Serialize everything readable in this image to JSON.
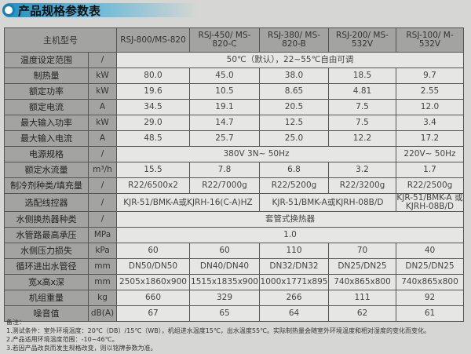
{
  "title": "产品规格参数表",
  "header": {
    "label": "主机型号",
    "models": [
      "RSJ-800/MS-820",
      "RSJ-450/ MS-820-C",
      "RSJ-380/ MS-820-B",
      "RSJ-200/ MS-532V",
      "RSJ-100/ M-532V"
    ]
  },
  "rows": [
    {
      "label": "温度设定范围",
      "unit": "/",
      "cells": [
        {
          "v": "50℃（默认），22~55℃自由可调",
          "span": 5
        }
      ]
    },
    {
      "label": "制热量",
      "unit": "kW",
      "cells": [
        {
          "v": "80.0"
        },
        {
          "v": "45.0"
        },
        {
          "v": "38.0"
        },
        {
          "v": "18.5"
        },
        {
          "v": "9.7"
        }
      ]
    },
    {
      "label": "额定功率",
      "unit": "kW",
      "cells": [
        {
          "v": "19.6"
        },
        {
          "v": "10.5"
        },
        {
          "v": "8.65"
        },
        {
          "v": "4.81"
        },
        {
          "v": "2.55"
        }
      ]
    },
    {
      "label": "额定电流",
      "unit": "A",
      "cells": [
        {
          "v": "34.5"
        },
        {
          "v": "19.1"
        },
        {
          "v": "20.5"
        },
        {
          "v": "7.5"
        },
        {
          "v": "12.0"
        }
      ]
    },
    {
      "label": "最大输入功率",
      "unit": "kW",
      "cells": [
        {
          "v": "29.0"
        },
        {
          "v": "14.7"
        },
        {
          "v": "12.5"
        },
        {
          "v": "7.5"
        },
        {
          "v": "3.4"
        }
      ]
    },
    {
      "label": "最大输入电流",
      "unit": "A",
      "cells": [
        {
          "v": "48.5"
        },
        {
          "v": "25.7"
        },
        {
          "v": "25.0"
        },
        {
          "v": "12.2"
        },
        {
          "v": "17.2"
        }
      ]
    },
    {
      "label": "电源规格",
      "unit": "/",
      "cells": [
        {
          "v": "380V  3N~ 50Hz",
          "span": 4
        },
        {
          "v": "220V~ 50Hz"
        }
      ]
    },
    {
      "label": "额定水流量",
      "unit": "m³/h",
      "cells": [
        {
          "v": "15.5"
        },
        {
          "v": "7.8"
        },
        {
          "v": "6.8"
        },
        {
          "v": "3.2"
        },
        {
          "v": "1.7"
        }
      ]
    },
    {
      "label": "制冷剂种类/填充量",
      "unit": "/",
      "cells": [
        {
          "v": "R22/6500x2"
        },
        {
          "v": "R22/7000g"
        },
        {
          "v": "R22/5200g"
        },
        {
          "v": "R22/3200g"
        },
        {
          "v": "R22/2500g"
        }
      ]
    },
    {
      "label": "选配线控器",
      "unit": "/",
      "cells": [
        {
          "v": "KJR-51/BMK-A或KJRH-16(C-A)HZ",
          "span": 2
        },
        {
          "v": "KJR-51/BMK-A或KJRH-08B/D",
          "span": 2
        },
        {
          "v": "KJR-51/BMK-A 或KJRH-08B/D"
        }
      ]
    },
    {
      "label": "水侧换热器种类",
      "unit": "/",
      "cells": [
        {
          "v": "套管式换热器",
          "span": 5
        }
      ]
    },
    {
      "label": "水管路最高承压",
      "unit": "MPa",
      "cells": [
        {
          "v": "1.0",
          "span": 5
        }
      ]
    },
    {
      "label": "水侧压力损失",
      "unit": "kPa",
      "cells": [
        {
          "v": "60"
        },
        {
          "v": "60"
        },
        {
          "v": "110"
        },
        {
          "v": "70"
        },
        {
          "v": "40"
        }
      ]
    },
    {
      "label": "循环进出水管径",
      "unit": "mm",
      "cells": [
        {
          "v": "DN50/DN50"
        },
        {
          "v": "DN40/DN40"
        },
        {
          "v": "DN32/DN32"
        },
        {
          "v": "DN25/DN25"
        },
        {
          "v": "DN25/DN25"
        }
      ]
    },
    {
      "label": "宽x高x深",
      "unit": "mm",
      "cells": [
        {
          "v": "2505x1860x900"
        },
        {
          "v": "1515x1835x900"
        },
        {
          "v": "1000x1771x895"
        },
        {
          "v": "740x865x800"
        },
        {
          "v": "740x865x800"
        }
      ]
    },
    {
      "label": "机组重量",
      "unit": "kg",
      "cells": [
        {
          "v": "660"
        },
        {
          "v": "329"
        },
        {
          "v": "266"
        },
        {
          "v": "111"
        },
        {
          "v": "92"
        }
      ]
    },
    {
      "label": "噪音值",
      "unit": "dB(A)",
      "cells": [
        {
          "v": "67"
        },
        {
          "v": "65"
        },
        {
          "v": "64"
        },
        {
          "v": "62"
        },
        {
          "v": "61"
        }
      ]
    }
  ],
  "notes": [
    "备注：",
    "1.测试条件：室外环境温度：20℃（DB）/15℃（WB），机组进水温度15℃，出水温度55℃。实际制热量会随室外环境温度和相对湿度的变化而变化。",
    "2.产品适用环境温度范围：-10~46℃。",
    "3.若因产品改良而发生规格改变，则以铭牌参数为准。"
  ]
}
